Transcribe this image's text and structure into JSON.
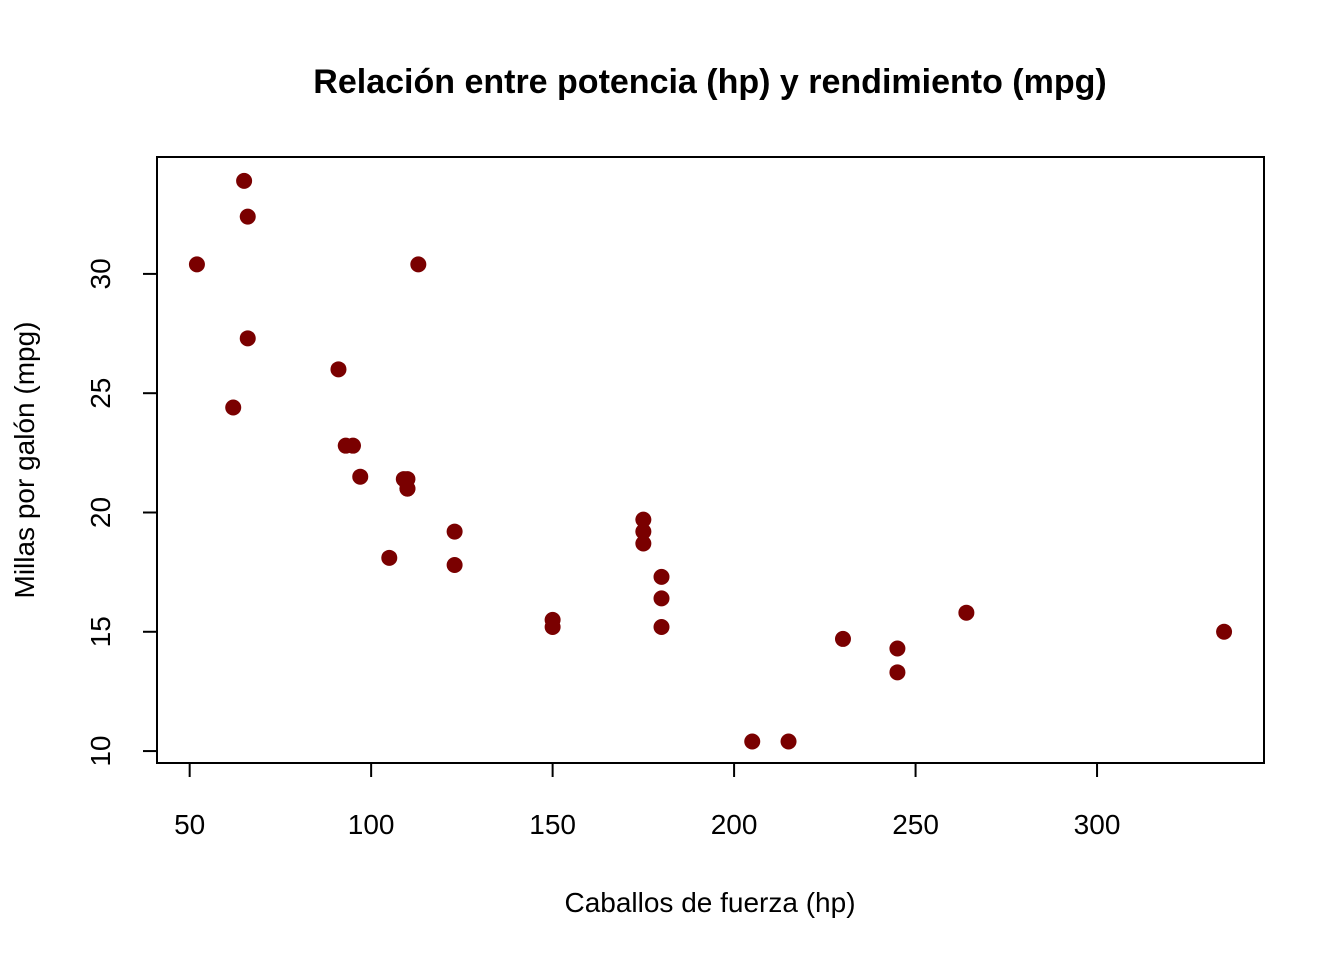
{
  "chart_data": {
    "type": "scatter",
    "title": "Relación entre potencia (hp) y rendimiento (mpg)",
    "xlabel": "Caballos de fuerza (hp)",
    "ylabel": "Millas por galón (mpg)",
    "xlim": [
      41,
      346
    ],
    "ylim": [
      9.5,
      34.9
    ],
    "xticks": [
      50,
      100,
      150,
      200,
      250,
      300
    ],
    "yticks": [
      10,
      15,
      20,
      25,
      30
    ],
    "point_color": "#7a0000",
    "grid": false,
    "legend": "none",
    "series": [
      {
        "points": [
          {
            "x": 110,
            "y": 21.0
          },
          {
            "x": 110,
            "y": 21.0
          },
          {
            "x": 93,
            "y": 22.8
          },
          {
            "x": 110,
            "y": 21.4
          },
          {
            "x": 175,
            "y": 18.7
          },
          {
            "x": 105,
            "y": 18.1
          },
          {
            "x": 245,
            "y": 14.3
          },
          {
            "x": 62,
            "y": 24.4
          },
          {
            "x": 95,
            "y": 22.8
          },
          {
            "x": 123,
            "y": 19.2
          },
          {
            "x": 123,
            "y": 17.8
          },
          {
            "x": 180,
            "y": 16.4
          },
          {
            "x": 180,
            "y": 17.3
          },
          {
            "x": 180,
            "y": 15.2
          },
          {
            "x": 205,
            "y": 10.4
          },
          {
            "x": 215,
            "y": 10.4
          },
          {
            "x": 230,
            "y": 14.7
          },
          {
            "x": 66,
            "y": 32.4
          },
          {
            "x": 52,
            "y": 30.4
          },
          {
            "x": 65,
            "y": 33.9
          },
          {
            "x": 97,
            "y": 21.5
          },
          {
            "x": 150,
            "y": 15.5
          },
          {
            "x": 150,
            "y": 15.2
          },
          {
            "x": 245,
            "y": 13.3
          },
          {
            "x": 175,
            "y": 19.2
          },
          {
            "x": 66,
            "y": 27.3
          },
          {
            "x": 91,
            "y": 26.0
          },
          {
            "x": 113,
            "y": 30.4
          },
          {
            "x": 264,
            "y": 15.8
          },
          {
            "x": 175,
            "y": 19.7
          },
          {
            "x": 335,
            "y": 15.0
          },
          {
            "x": 109,
            "y": 21.4
          }
        ]
      }
    ]
  }
}
